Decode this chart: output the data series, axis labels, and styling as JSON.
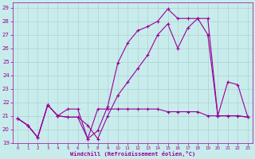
{
  "xlabel": "Windchill (Refroidissement éolien,°C)",
  "xlim": [
    -0.5,
    23.5
  ],
  "ylim": [
    19,
    29.4
  ],
  "yticks": [
    19,
    20,
    21,
    22,
    23,
    24,
    25,
    26,
    27,
    28,
    29
  ],
  "xticks": [
    0,
    1,
    2,
    3,
    4,
    5,
    6,
    7,
    8,
    9,
    10,
    11,
    12,
    13,
    14,
    15,
    16,
    17,
    18,
    19,
    20,
    21,
    22,
    23
  ],
  "bg_color": "#c8ecec",
  "grid_color": "#b0d0d0",
  "line_color": "#990099",
  "line1_x": [
    0,
    1,
    2,
    3,
    4,
    5,
    6,
    7,
    8,
    9,
    10,
    11,
    12,
    13,
    14,
    15,
    16,
    17,
    18,
    19,
    20,
    21,
    22,
    23
  ],
  "line1_y": [
    20.8,
    20.3,
    19.4,
    21.8,
    21.0,
    20.9,
    20.9,
    19.3,
    19.9,
    21.7,
    24.9,
    26.4,
    27.3,
    27.6,
    28.0,
    28.9,
    28.2,
    28.2,
    28.2,
    27.0,
    21.0,
    23.5,
    23.3,
    20.9
  ],
  "line2_x": [
    0,
    1,
    2,
    3,
    4,
    5,
    6,
    7,
    8,
    9,
    10,
    11,
    12,
    13,
    14,
    15,
    16,
    17,
    18,
    19,
    20,
    21,
    22,
    23
  ],
  "line2_y": [
    20.8,
    20.3,
    19.4,
    21.8,
    21.0,
    20.9,
    20.9,
    20.3,
    19.3,
    21.0,
    22.5,
    23.5,
    24.5,
    25.5,
    27.0,
    27.8,
    26.0,
    27.5,
    28.2,
    28.2,
    21.0,
    21.0,
    21.0,
    20.9
  ],
  "line3_x": [
    0,
    1,
    2,
    3,
    4,
    5,
    6,
    7,
    8,
    9,
    10,
    11,
    12,
    13,
    14,
    15,
    16,
    17,
    18,
    19,
    20,
    21,
    22,
    23
  ],
  "line3_y": [
    20.8,
    20.3,
    19.4,
    21.8,
    21.0,
    21.5,
    21.5,
    19.3,
    21.5,
    21.5,
    21.5,
    21.5,
    21.5,
    21.5,
    21.5,
    21.3,
    21.3,
    21.3,
    21.3,
    21.0,
    21.0,
    21.0,
    21.0,
    20.9
  ]
}
